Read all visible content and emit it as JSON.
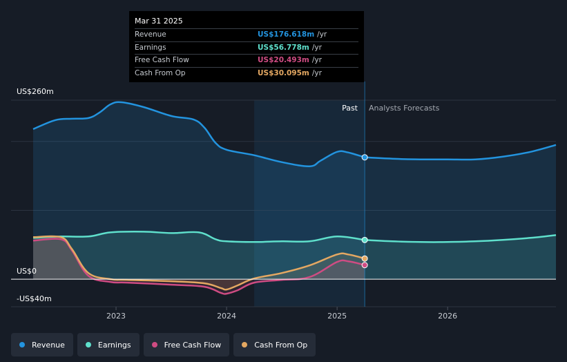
{
  "colors": {
    "revenue": "#2394df",
    "earnings": "#5fe0cc",
    "fcf": "#cf4c83",
    "cfo": "#e4a862",
    "background": "#161c26"
  },
  "tooltip": {
    "date": "Mar 31 2025",
    "unit": "/yr",
    "rows": [
      {
        "label": "Revenue",
        "value": "US$176.618m",
        "color": "#2394df"
      },
      {
        "label": "Earnings",
        "value": "US$56.778m",
        "color": "#5fe0cc"
      },
      {
        "label": "Free Cash Flow",
        "value": "US$20.493m",
        "color": "#cf4c83"
      },
      {
        "label": "Cash From Op",
        "value": "US$30.095m",
        "color": "#e4a862"
      }
    ]
  },
  "legend": [
    {
      "label": "Revenue",
      "color": "#2394df"
    },
    {
      "label": "Earnings",
      "color": "#5fe0cc"
    },
    {
      "label": "Free Cash Flow",
      "color": "#cf4c83"
    },
    {
      "label": "Cash From Op",
      "color": "#e4a862"
    }
  ],
  "chart_data": {
    "type": "area",
    "title": "",
    "xlabel": "",
    "ylabel": "",
    "ylim": [
      -40,
      260
    ],
    "xlim": [
      2022.25,
      2026.98
    ],
    "y_tick_labels": [
      {
        "label": "US$260m",
        "value": 260
      },
      {
        "label": "US$0",
        "value": 0
      },
      {
        "label": "-US$40m",
        "value": -40
      }
    ],
    "gridlines": [
      260,
      200,
      100,
      0,
      -40
    ],
    "x_ticks": [
      {
        "label": "2023",
        "value": 2023.0
      },
      {
        "label": "2024",
        "value": 2024.0
      },
      {
        "label": "2025",
        "value": 2025.0
      },
      {
        "label": "2026",
        "value": 2026.0
      }
    ],
    "past_label": "Past",
    "forecast_label": "Analysts Forecasts",
    "highlight_start": 2024.25,
    "divider_x": 2025.25,
    "series": [
      {
        "name": "Revenue",
        "key": "revenue",
        "x": [
          2022.25,
          2022.45,
          2022.6,
          2022.75,
          2022.85,
          2022.95,
          2023.05,
          2023.25,
          2023.5,
          2023.7,
          2023.8,
          2023.9,
          2024.0,
          2024.25,
          2024.5,
          2024.75,
          2024.85,
          2025.0,
          2025.1,
          2025.25
        ],
        "values": [
          218,
          231,
          233,
          234,
          242,
          254,
          257,
          250,
          237,
          232,
          220,
          198,
          188,
          180,
          170,
          164,
          172,
          185,
          184,
          177
        ],
        "forecast_x": [
          2025.25,
          2025.5,
          2025.75,
          2026.0,
          2026.25,
          2026.5,
          2026.75,
          2026.98
        ],
        "forecast_values": [
          177,
          175,
          174,
          174,
          174,
          178,
          185,
          195
        ]
      },
      {
        "name": "Earnings",
        "key": "earnings",
        "x": [
          2022.25,
          2022.5,
          2022.75,
          2022.95,
          2023.25,
          2023.5,
          2023.75,
          2023.9,
          2024.0,
          2024.25,
          2024.5,
          2024.75,
          2025.0,
          2025.25
        ],
        "values": [
          60,
          62,
          62,
          68,
          69,
          67,
          68,
          58,
          55,
          54,
          55,
          55,
          62,
          57
        ],
        "forecast_x": [
          2025.25,
          2025.5,
          2025.75,
          2026.0,
          2026.25,
          2026.5,
          2026.75,
          2026.98
        ],
        "forecast_values": [
          57,
          55,
          54,
          54,
          55,
          57,
          60,
          64
        ]
      },
      {
        "name": "Free Cash Flow",
        "key": "fcf",
        "x": [
          2022.25,
          2022.5,
          2022.6,
          2022.75,
          2022.95,
          2023.1,
          2023.5,
          2023.8,
          2023.95,
          2024.0,
          2024.1,
          2024.25,
          2024.5,
          2024.75,
          2025.0,
          2025.1,
          2025.25
        ],
        "values": [
          56,
          58,
          42,
          5,
          -4,
          -5,
          -8,
          -11,
          -20,
          -21,
          -16,
          -5,
          -1,
          3,
          25,
          26,
          20.5
        ],
        "forecast_x": [],
        "forecast_values": []
      },
      {
        "name": "Cash From Op",
        "key": "cfo",
        "x": [
          2022.25,
          2022.5,
          2022.6,
          2022.75,
          2022.95,
          2023.1,
          2023.5,
          2023.8,
          2023.95,
          2024.0,
          2024.1,
          2024.25,
          2024.5,
          2024.75,
          2025.0,
          2025.1,
          2025.25
        ],
        "values": [
          61,
          61,
          44,
          9,
          0,
          -1,
          -3,
          -6,
          -13,
          -15,
          -9,
          1,
          9,
          20,
          36,
          36,
          30
        ],
        "forecast_x": [],
        "forecast_values": []
      }
    ],
    "endpoint_x": 2025.25
  }
}
